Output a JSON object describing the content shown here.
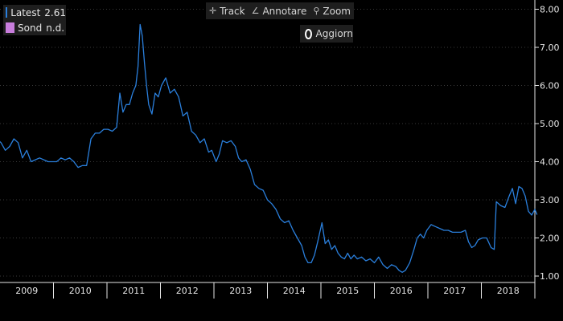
{
  "legend": {
    "items": [
      {
        "name": "Latest",
        "value": "2.61",
        "color": "#2a7fdc"
      },
      {
        "name": "Sond",
        "value": "n.d.",
        "color": "#c87ddc"
      }
    ]
  },
  "toolbar": {
    "track_label": "Track",
    "annotate_label": "Annotare",
    "zoom_label": "Zoom",
    "refresh_label": "Aggiorn"
  },
  "colors": {
    "line": "#2a7fdc",
    "grid": "#3a3a3a",
    "text": "#e6e6e6",
    "background": "#000000"
  },
  "chart_data": {
    "type": "line",
    "title": "",
    "xlabel": "",
    "ylabel": "",
    "ylim": [
      1.0,
      8.0
    ],
    "xlim": [
      2009.0,
      2019.0
    ],
    "yticks": [
      "1.00",
      "2.00",
      "3.00",
      "4.00",
      "5.00",
      "6.00",
      "7.00",
      "8.00"
    ],
    "xticks": [
      "2009",
      "2010",
      "2011",
      "2012",
      "2013",
      "2014",
      "2015",
      "2016",
      "2017",
      "2018"
    ],
    "grid": "horizontal-dotted",
    "legend": "top-left",
    "series": [
      {
        "name": "Latest",
        "color": "#2a7fdc",
        "points": [
          [
            2008.94,
            4.6
          ],
          [
            2009.02,
            4.5
          ],
          [
            2009.1,
            4.3
          ],
          [
            2009.18,
            4.4
          ],
          [
            2009.26,
            4.6
          ],
          [
            2009.34,
            4.5
          ],
          [
            2009.42,
            4.1
          ],
          [
            2009.5,
            4.3
          ],
          [
            2009.58,
            4.0
          ],
          [
            2009.66,
            4.05
          ],
          [
            2009.74,
            4.1
          ],
          [
            2009.82,
            4.05
          ],
          [
            2009.9,
            4.0
          ],
          [
            2009.98,
            4.0
          ],
          [
            2010.06,
            4.0
          ],
          [
            2010.14,
            4.1
          ],
          [
            2010.22,
            4.05
          ],
          [
            2010.3,
            4.1
          ],
          [
            2010.38,
            4.0
          ],
          [
            2010.46,
            3.85
          ],
          [
            2010.54,
            3.9
          ],
          [
            2010.62,
            3.9
          ],
          [
            2010.7,
            4.6
          ],
          [
            2010.78,
            4.75
          ],
          [
            2010.86,
            4.75
          ],
          [
            2010.94,
            4.85
          ],
          [
            2011.02,
            4.85
          ],
          [
            2011.1,
            4.8
          ],
          [
            2011.18,
            4.9
          ],
          [
            2011.24,
            5.8
          ],
          [
            2011.3,
            5.3
          ],
          [
            2011.36,
            5.5
          ],
          [
            2011.42,
            5.5
          ],
          [
            2011.48,
            5.8
          ],
          [
            2011.54,
            6.0
          ],
          [
            2011.58,
            6.5
          ],
          [
            2011.62,
            7.6
          ],
          [
            2011.66,
            7.3
          ],
          [
            2011.7,
            6.6
          ],
          [
            2011.74,
            6.0
          ],
          [
            2011.78,
            5.5
          ],
          [
            2011.84,
            5.25
          ],
          [
            2011.9,
            5.8
          ],
          [
            2011.96,
            5.7
          ],
          [
            2012.02,
            6.0
          ],
          [
            2012.1,
            6.2
          ],
          [
            2012.18,
            5.8
          ],
          [
            2012.26,
            5.9
          ],
          [
            2012.34,
            5.7
          ],
          [
            2012.42,
            5.2
          ],
          [
            2012.5,
            5.3
          ],
          [
            2012.58,
            4.8
          ],
          [
            2012.66,
            4.7
          ],
          [
            2012.74,
            4.5
          ],
          [
            2012.82,
            4.6
          ],
          [
            2012.9,
            4.25
          ],
          [
            2012.96,
            4.3
          ],
          [
            2013.04,
            4.0
          ],
          [
            2013.1,
            4.2
          ],
          [
            2013.16,
            4.55
          ],
          [
            2013.24,
            4.5
          ],
          [
            2013.32,
            4.55
          ],
          [
            2013.4,
            4.4
          ],
          [
            2013.46,
            4.1
          ],
          [
            2013.52,
            4.0
          ],
          [
            2013.6,
            4.05
          ],
          [
            2013.68,
            3.8
          ],
          [
            2013.76,
            3.4
          ],
          [
            2013.84,
            3.3
          ],
          [
            2013.92,
            3.25
          ],
          [
            2014.0,
            3.0
          ],
          [
            2014.08,
            2.9
          ],
          [
            2014.16,
            2.75
          ],
          [
            2014.24,
            2.5
          ],
          [
            2014.32,
            2.4
          ],
          [
            2014.4,
            2.45
          ],
          [
            2014.48,
            2.2
          ],
          [
            2014.56,
            2.0
          ],
          [
            2014.64,
            1.8
          ],
          [
            2014.7,
            1.5
          ],
          [
            2014.76,
            1.35
          ],
          [
            2014.82,
            1.35
          ],
          [
            2014.88,
            1.55
          ],
          [
            2014.94,
            1.9
          ],
          [
            2015.02,
            2.4
          ],
          [
            2015.08,
            1.85
          ],
          [
            2015.14,
            1.95
          ],
          [
            2015.2,
            1.7
          ],
          [
            2015.26,
            1.8
          ],
          [
            2015.32,
            1.6
          ],
          [
            2015.38,
            1.5
          ],
          [
            2015.44,
            1.45
          ],
          [
            2015.5,
            1.6
          ],
          [
            2015.56,
            1.45
          ],
          [
            2015.62,
            1.55
          ],
          [
            2015.68,
            1.45
          ],
          [
            2015.76,
            1.5
          ],
          [
            2015.84,
            1.4
          ],
          [
            2015.92,
            1.45
          ],
          [
            2016.0,
            1.35
          ],
          [
            2016.08,
            1.5
          ],
          [
            2016.16,
            1.3
          ],
          [
            2016.24,
            1.2
          ],
          [
            2016.32,
            1.3
          ],
          [
            2016.4,
            1.25
          ],
          [
            2016.46,
            1.15
          ],
          [
            2016.52,
            1.1
          ],
          [
            2016.58,
            1.15
          ],
          [
            2016.66,
            1.35
          ],
          [
            2016.74,
            1.7
          ],
          [
            2016.8,
            2.0
          ],
          [
            2016.86,
            2.1
          ],
          [
            2016.92,
            2.0
          ],
          [
            2016.98,
            2.2
          ],
          [
            2017.06,
            2.35
          ],
          [
            2017.14,
            2.3
          ],
          [
            2017.22,
            2.25
          ],
          [
            2017.3,
            2.2
          ],
          [
            2017.38,
            2.2
          ],
          [
            2017.46,
            2.15
          ],
          [
            2017.54,
            2.15
          ],
          [
            2017.62,
            2.15
          ],
          [
            2017.7,
            2.2
          ],
          [
            2017.76,
            1.9
          ],
          [
            2017.82,
            1.75
          ],
          [
            2017.88,
            1.8
          ],
          [
            2017.94,
            1.95
          ],
          [
            2018.02,
            2.0
          ],
          [
            2018.1,
            2.0
          ],
          [
            2018.18,
            1.75
          ],
          [
            2018.24,
            1.7
          ],
          [
            2018.28,
            2.95
          ],
          [
            2018.36,
            2.85
          ],
          [
            2018.44,
            2.8
          ],
          [
            2018.52,
            3.1
          ],
          [
            2018.58,
            3.3
          ],
          [
            2018.64,
            2.9
          ],
          [
            2018.7,
            3.35
          ],
          [
            2018.76,
            3.3
          ],
          [
            2018.82,
            3.1
          ],
          [
            2018.88,
            2.7
          ],
          [
            2018.94,
            2.6
          ],
          [
            2019.0,
            2.75
          ],
          [
            2019.04,
            2.61
          ]
        ]
      }
    ]
  }
}
